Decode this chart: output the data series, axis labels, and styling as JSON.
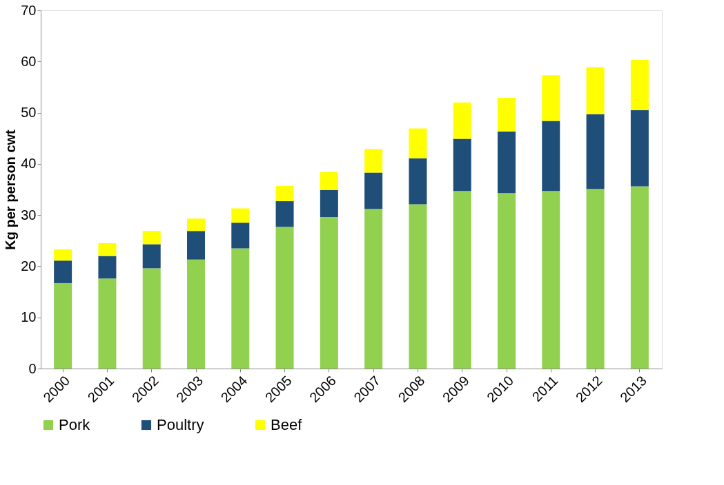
{
  "chart_data": {
    "type": "bar",
    "stacked": true,
    "ylabel": "Kg per person cwt",
    "categories": [
      "2000",
      "2001",
      "2002",
      "2003",
      "2004",
      "2005",
      "2006",
      "2007",
      "2008",
      "2009",
      "2010",
      "2011",
      "2012",
      "2013"
    ],
    "series": [
      {
        "name": "Pork",
        "color": "#92d050",
        "values": [
          16.7,
          17.6,
          19.6,
          21.3,
          23.5,
          27.7,
          29.6,
          31.2,
          32.1,
          34.7,
          34.3,
          34.7,
          35.1,
          35.6
        ]
      },
      {
        "name": "Poultry",
        "color": "#1f4e79",
        "values": [
          4.4,
          4.4,
          4.7,
          5.6,
          5.0,
          5.0,
          5.3,
          7.1,
          9.0,
          10.2,
          12.0,
          13.7,
          14.6,
          14.9
        ]
      },
      {
        "name": "Beef",
        "color": "#ffff00",
        "values": [
          2.2,
          2.5,
          2.6,
          2.4,
          2.8,
          3.0,
          3.5,
          4.6,
          5.8,
          7.1,
          6.6,
          8.9,
          9.2,
          9.8
        ]
      }
    ],
    "ylim": [
      0,
      70
    ],
    "yticks": [
      0,
      10,
      20,
      30,
      40,
      50,
      60,
      70
    ],
    "grid": false,
    "legend": "bottom"
  }
}
